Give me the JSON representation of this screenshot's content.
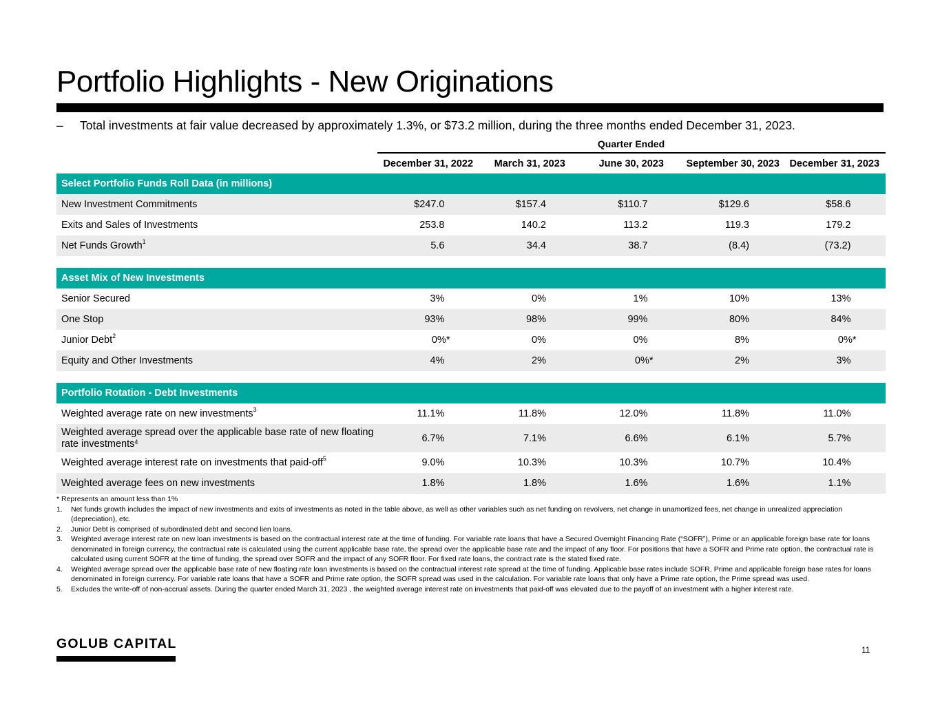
{
  "title": "Portfolio Highlights - New Originations",
  "bullet": {
    "dash": "–",
    "text": "Total investments at fair value decreased by approximately 1.3%, or $73.2 million, during the three months ended December 31, 2023."
  },
  "table": {
    "group_header": "Quarter Ended",
    "columns": [
      "December 31, 2022",
      "March 31, 2023",
      "June 30, 2023",
      "September 30, 2023",
      "December 31, 2023"
    ],
    "sections": [
      {
        "title": "Select Portfolio Funds Roll Data (in millions)",
        "rows": [
          {
            "label": "New Investment Commitments",
            "sup": "",
            "values": [
              "$247.0",
              "$157.4",
              "$110.7",
              "$129.6",
              "$58.6"
            ]
          },
          {
            "label": "Exits and Sales of Investments",
            "sup": "",
            "values": [
              "253.8",
              "140.2",
              "113.2",
              "119.3",
              "179.2"
            ]
          },
          {
            "label": "Net Funds Growth",
            "sup": "1",
            "values": [
              "5.6",
              "34.4",
              "38.7",
              "(8.4)",
              "(73.2)"
            ]
          }
        ]
      },
      {
        "title": "Asset Mix of New Investments",
        "rows": [
          {
            "label": "Senior Secured",
            "sup": "",
            "values": [
              "3%",
              "0%",
              "1%",
              "10%",
              "13%"
            ]
          },
          {
            "label": "One Stop",
            "sup": "",
            "values": [
              "93%",
              "98%",
              "99%",
              "80%",
              "84%"
            ]
          },
          {
            "label": "Junior Debt",
            "sup": "2",
            "values": [
              "0%*",
              "0%",
              "0%",
              "8%",
              "0%*"
            ]
          },
          {
            "label": "Equity and Other Investments",
            "sup": "",
            "values": [
              "4%",
              "2%",
              "0%*",
              "2%",
              "3%"
            ]
          }
        ]
      },
      {
        "title": "Portfolio Rotation - Debt Investments",
        "rows": [
          {
            "label": "Weighted average rate on new investments",
            "sup": "3",
            "values": [
              "11.1%",
              "11.8%",
              "12.0%",
              "11.8%",
              "11.0%"
            ]
          },
          {
            "label": "Weighted average spread over the applicable base rate of new floating rate investments",
            "sup": "4",
            "values": [
              "6.7%",
              "7.1%",
              "6.6%",
              "6.1%",
              "5.7%"
            ]
          },
          {
            "label": "Weighted average interest rate on investments that paid-off",
            "sup": "5",
            "values": [
              "9.0%",
              "10.3%",
              "10.3%",
              "10.7%",
              "10.4%"
            ]
          },
          {
            "label": "Weighted average fees on new investments",
            "sup": "",
            "values": [
              "1.8%",
              "1.8%",
              "1.6%",
              "1.6%",
              "1.1%"
            ]
          }
        ]
      }
    ]
  },
  "footnotes": {
    "star": "* Represents an amount less than 1%",
    "items": [
      {
        "n": "1.",
        "text": "Net funds growth includes the impact of new investments and exits of investments as noted in the table above, as well as other variables such as net funding on revolvers, net change in unamortized fees, net change in unrealized appreciation (depreciation), etc."
      },
      {
        "n": "2.",
        "text": "Junior Debt is comprised of subordinated debt and second lien loans."
      },
      {
        "n": "3.",
        "text": "Weighted average interest rate on new loan investments is based on the contractual interest rate at the time of funding. For variable rate loans that have a Secured Overnight Financing Rate (“SOFR”), Prime or an applicable foreign base rate for loans denominated in foreign currency, the contractual rate is calculated using the current applicable base rate, the spread over the applicable base rate and the impact of any floor. For positions that have a SOFR and Prime rate option, the contractual rate is calculated using current SOFR at the time of funding, the spread over SOFR and the impact of any SOFR floor. For fixed rate loans, the contract rate is the stated fixed rate."
      },
      {
        "n": "4.",
        "text": "Weighted average spread over the applicable base rate of new floating rate loan investments is based on the contractual interest rate spread at the time of funding. Applicable base rates include SOFR, Prime and applicable foreign base rates for loans denominated in foreign currency.  For variable rate loans that have a SOFR and Prime rate option, the SOFR spread was used in the calculation. For variable rate loans that only have a Prime rate option, the Prime spread was used."
      },
      {
        "n": "5.",
        "text": "Excludes the write-off of non-accrual assets. During the quarter ended March 31, 2023 , the weighted average interest rate on investments that paid-off was elevated due to the payoff of an investment with a higher interest rate."
      }
    ]
  },
  "logo": "GOLUB CAPITAL",
  "page_number": "11",
  "colors": {
    "section_header": "#00a99d",
    "row_shade": "#ebebeb"
  }
}
